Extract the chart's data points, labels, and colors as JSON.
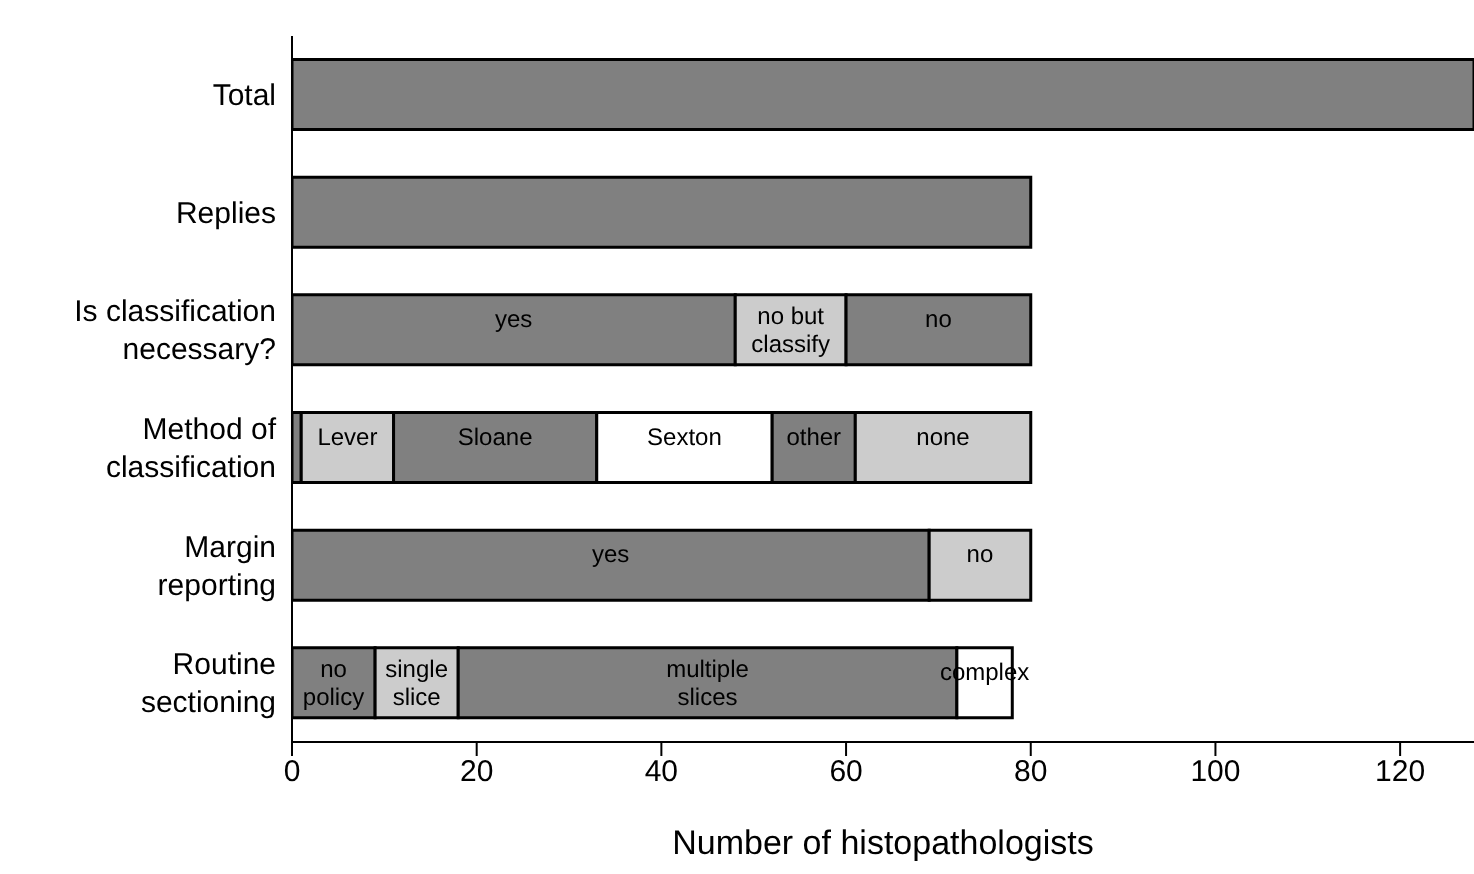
{
  "chart_data": {
    "type": "bar",
    "orientation": "horizontal",
    "stacked": true,
    "xlabel": "Number of histopathologists",
    "categories": [
      "Total",
      "Replies",
      "Is classification necessary?",
      "Method of classification",
      "Margin reporting",
      "Routine sectioning"
    ],
    "series": [
      {
        "colors": [
          "#808080",
          "#808080",
          "#808080",
          "#808080",
          "#808080",
          "#808080"
        ],
        "values": [
          128,
          80,
          48,
          1,
          69,
          9
        ],
        "value_labels": [
          null,
          null,
          "yes",
          null,
          "yes",
          "no\npolicy"
        ]
      },
      {
        "colors": [
          "#cccccc",
          "#cccccc",
          "#cccccc",
          "#cccccc",
          "#cccccc",
          "#cccccc"
        ],
        "values": [
          null,
          null,
          12,
          10,
          11,
          9
        ],
        "value_labels": [
          null,
          null,
          "no but\nclassify",
          "Lever",
          "no",
          "single\nslice"
        ]
      },
      {
        "colors": [
          "#808080",
          "#808080",
          "#808080",
          "#808080",
          "#808080",
          "#808080"
        ],
        "values": [
          null,
          null,
          20,
          22,
          null,
          54
        ],
        "value_labels": [
          null,
          null,
          "no",
          "Sloane",
          null,
          "multiple\nslices"
        ]
      },
      {
        "colors": [
          "#ffffff",
          "#ffffff",
          "#ffffff",
          "#ffffff",
          "#ffffff",
          "#ffffff"
        ],
        "values": [
          null,
          null,
          null,
          19,
          null,
          6
        ],
        "value_labels": [
          null,
          null,
          null,
          "Sexton",
          null,
          "complex"
        ]
      },
      {
        "colors": [
          "#808080",
          "#808080",
          "#808080",
          "#808080",
          "#808080",
          "#808080"
        ],
        "values": [
          null,
          null,
          null,
          9,
          null,
          null
        ],
        "value_labels": [
          null,
          null,
          null,
          "other",
          null,
          null
        ]
      },
      {
        "colors": [
          "#cccccc",
          "#cccccc",
          "#cccccc",
          "#cccccc",
          "#cccccc",
          "#cccccc"
        ],
        "values": [
          null,
          null,
          null,
          19,
          null,
          null
        ],
        "value_labels": [
          null,
          null,
          null,
          "none",
          null,
          null
        ]
      }
    ],
    "xlim": [
      0,
      128
    ],
    "xticks": [
      0,
      20,
      40,
      60,
      80,
      100,
      120
    ],
    "grid": false,
    "legend": false
  }
}
